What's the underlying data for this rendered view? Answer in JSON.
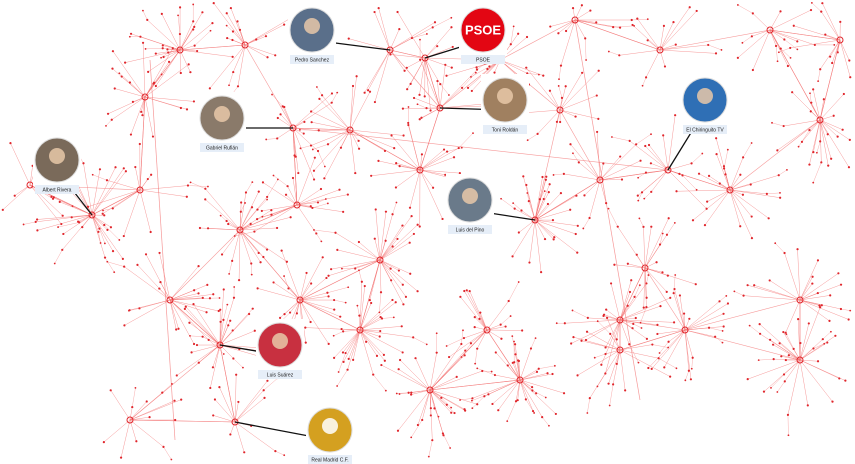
{
  "nodes": [
    {
      "label": "Pedro Sanchez"
    },
    {
      "label": "PSOE"
    },
    {
      "label": "Gabriel Rufián"
    },
    {
      "label": "Toni Roldán"
    },
    {
      "label": "Albert Rivera"
    },
    {
      "label": "Luis del Pino"
    },
    {
      "label": "El Chiringuito TV"
    },
    {
      "label": "Luis Suárez"
    },
    {
      "label": "Real Madrid C.F."
    }
  ]
}
